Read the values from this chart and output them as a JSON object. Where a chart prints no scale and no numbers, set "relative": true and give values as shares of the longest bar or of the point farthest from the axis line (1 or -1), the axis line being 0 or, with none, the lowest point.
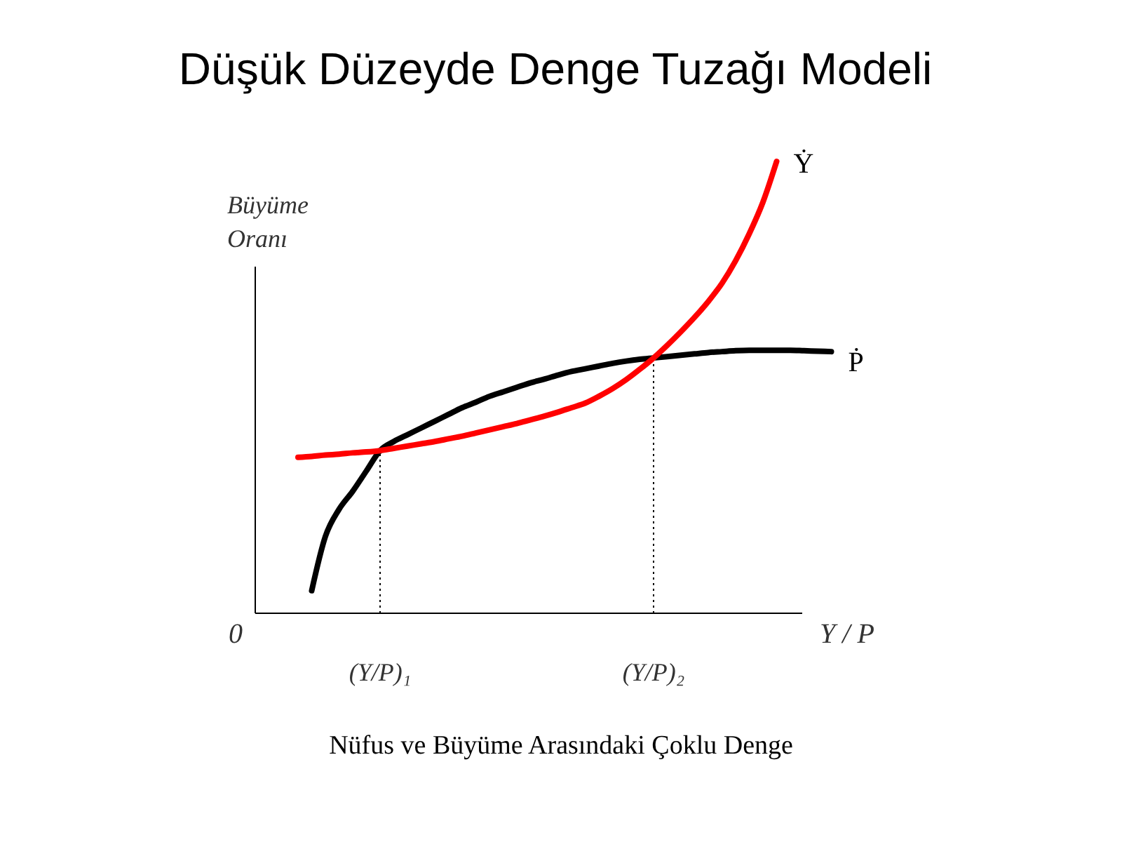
{
  "chart_data": {
    "type": "line",
    "title": "Düşük Düzeyde Denge Tuzağı Modeli",
    "xlabel": "Y / P",
    "ylabel": "Büyüme\nOranı",
    "relative": true,
    "categories": [
      null,
      null,
      null,
      null,
      null,
      null,
      "(Y/P)₁",
      null,
      null,
      null,
      null,
      null,
      null,
      null,
      null,
      null,
      null,
      null,
      null,
      null,
      null,
      null,
      null,
      null,
      null,
      null,
      "(Y/P)₂",
      null,
      null,
      null,
      null,
      null,
      null,
      null,
      null,
      null,
      null,
      null,
      null,
      null
    ],
    "series": [
      {
        "name": "Ṗ",
        "color": "#000000",
        "values": [
          null,
          0.05,
          0.17,
          0.23,
          0.27,
          0.315,
          0.36,
          0.38,
          0.395,
          0.41,
          0.425,
          0.44,
          0.455,
          0.467,
          0.48,
          0.49,
          0.5,
          0.51,
          0.518,
          0.527,
          0.535,
          0.541,
          0.547,
          0.553,
          0.558,
          0.562,
          0.565,
          0.568,
          0.571,
          0.574,
          0.577,
          0.579,
          0.581,
          0.582,
          0.582,
          0.582,
          0.582,
          0.581,
          0.58,
          0.579
        ]
      },
      {
        "name": "Ẏ",
        "color": "#ff0000",
        "values": [
          0.345,
          0.347,
          0.35,
          0.352,
          0.355,
          0.357,
          0.36,
          0.365,
          0.37,
          0.375,
          0.38,
          0.386,
          0.392,
          0.399,
          0.406,
          0.413,
          0.42,
          0.428,
          0.436,
          0.445,
          0.455,
          0.465,
          0.48,
          0.497,
          0.517,
          0.54,
          0.565,
          0.593,
          0.623,
          0.655,
          0.69,
          0.73,
          0.78,
          0.84,
          0.91,
          1.0,
          null,
          null,
          null,
          null
        ]
      }
    ],
    "ref_lines": [
      {
        "axis": "x",
        "value": "(Y/P)₁",
        "line_style": "dotted"
      },
      {
        "axis": "x",
        "value": "(Y/P)₂",
        "line_style": "dotted"
      }
    ],
    "marker": "none",
    "line_style": "solid",
    "annotations": [
      "0",
      "Nüfus ve Büyüme Arasındaki Çoklu Denge"
    ]
  }
}
